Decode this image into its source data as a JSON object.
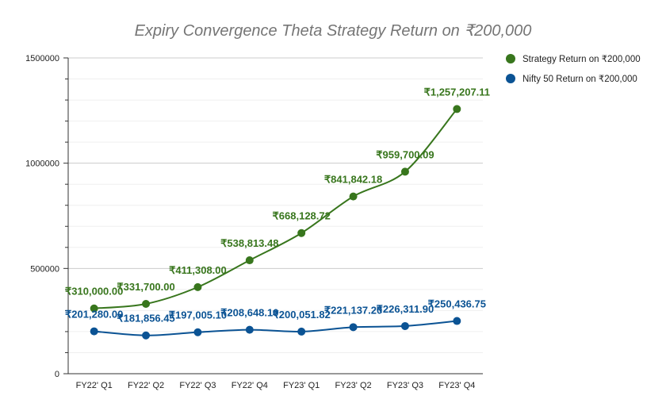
{
  "chart_data": {
    "type": "line",
    "title": "Expiry Convergence Theta Strategy Return on ₹200,000",
    "categories": [
      "FY22' Q1",
      "FY22' Q2",
      "FY22' Q3",
      "FY22' Q4",
      "FY23' Q1",
      "FY23' Q2",
      "FY23' Q3",
      "FY23' Q4"
    ],
    "ylim": [
      0,
      1500000
    ],
    "yticks": [
      "0",
      "500000",
      "1000000",
      "1500000"
    ],
    "xlabel": "",
    "ylabel": "",
    "grid": true,
    "legend_position": "right",
    "series": [
      {
        "name": "Strategy Return on ₹200,000",
        "color": "#38761d",
        "values": [
          310000.0,
          331700.0,
          411308.0,
          538813.48,
          668128.72,
          841842.18,
          959700.09,
          1257207.11
        ],
        "labels": [
          "₹310,000.00",
          "₹331,700.00",
          "₹411,308.00",
          "₹538,813.48",
          "₹668,128.72",
          "₹841,842.18",
          "₹959,700.09",
          "₹1,257,207.11"
        ]
      },
      {
        "name": "Nifty 50 Return on ₹200,000",
        "color": "#0b5394",
        "values": [
          201280.0,
          181856.45,
          197005.1,
          208648.1,
          200051.82,
          221137.2,
          226311.9,
          250436.75
        ],
        "labels": [
          "₹201,280.00",
          "₹181,856.45",
          "₹197,005.10",
          "₹208,648.10",
          "₹200,051.82",
          "₹221,137.20",
          "₹226,311.90",
          "₹250,436.75"
        ]
      }
    ]
  }
}
